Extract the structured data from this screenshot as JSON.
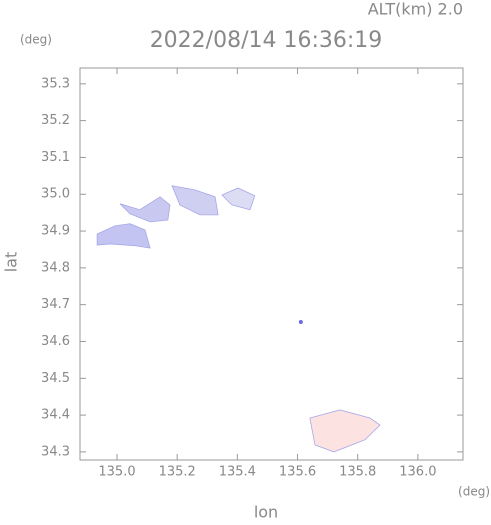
{
  "chart_data": {
    "type": "map",
    "title": "2022/08/14 16:36:19",
    "subtitle": "ALT(km) 2.0",
    "xlabel": "lon",
    "ylabel": "lat",
    "xunit": "(deg)",
    "yunit": "(deg)",
    "xlim": [
      134.877,
      136.15
    ],
    "ylim": [
      34.278,
      35.343
    ],
    "xticks": [
      {
        "value": 135,
        "label": "135.0"
      },
      135.2,
      135.4,
      135.6,
      135.8,
      {
        "value": 136,
        "label": "136.0"
      }
    ],
    "yticks": [
      34.3,
      34.4,
      34.5,
      34.6,
      34.7,
      34.8,
      34.9,
      {
        "value": 35,
        "label": "35.0"
      },
      35.1,
      35.2,
      35.3
    ],
    "regions": [
      {
        "color": "#c4c4f2",
        "lon": [
          134.934,
          134.993,
          135.043,
          135.093,
          135.11,
          135.06,
          134.977,
          134.934
        ],
        "lat": [
          34.892,
          34.914,
          34.92,
          34.903,
          34.854,
          34.86,
          34.865,
          34.862
        ]
      },
      {
        "color": "#c8c8f0",
        "lon": [
          135.01,
          135.076,
          135.143,
          135.176,
          135.169,
          135.11,
          135.043
        ],
        "lat": [
          34.974,
          34.958,
          34.993,
          34.971,
          34.93,
          34.925,
          34.947
        ]
      },
      {
        "color": "#cfcff2",
        "lon": [
          135.183,
          135.259,
          135.326,
          135.336,
          135.276,
          135.209
        ],
        "lat": [
          35.023,
          35.012,
          34.993,
          34.944,
          34.944,
          34.971
        ]
      },
      {
        "color": "#dcdcf5",
        "lon": [
          135.349,
          135.402,
          135.458,
          135.442,
          135.382
        ],
        "lat": [
          34.998,
          35.017,
          34.996,
          34.958,
          34.971
        ]
      },
      {
        "color": "#fde2e2",
        "lon": [
          135.641,
          135.741,
          135.841,
          135.874,
          135.824,
          135.721,
          135.658
        ],
        "lat": [
          34.392,
          34.414,
          34.392,
          34.373,
          34.333,
          34.3,
          34.319
        ]
      }
    ],
    "points": {
      "color": "#6a6ae0",
      "lon": [
        135.611
      ],
      "lat": [
        34.653
      ]
    }
  }
}
